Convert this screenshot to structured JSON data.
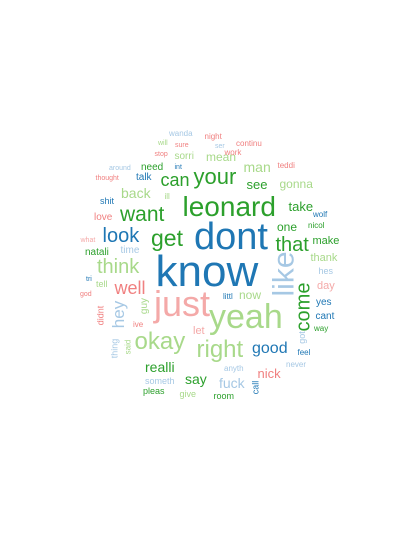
{
  "words": {
    "know": "know",
    "dont": "dont",
    "just": "just",
    "yeah": "yeah",
    "leonard": "leonard",
    "like": "like",
    "right": "right",
    "okay": "okay",
    "get": "get",
    "your": "your",
    "want": "want",
    "look": "look",
    "come": "come",
    "that": "that",
    "think": "think",
    "well": "well",
    "can": "can",
    "good": "good",
    "hey": "hey",
    "say": "say",
    "realli": "realli",
    "fuck": "fuck",
    "nick": "nick",
    "back": "back",
    "man": "man",
    "mean": "mean",
    "see": "see",
    "gonna": "gonna",
    "take": "take",
    "one": "one",
    "now": "now",
    "thank": "thank",
    "make": "make",
    "day": "day",
    "cant": "cant",
    "yes": "yes",
    "let": "let",
    "guy": "guy",
    "sorri": "sorri",
    "need": "need",
    "talk": "talk",
    "time": "time",
    "natali": "natali",
    "love": "love",
    "shit": "shit",
    "tell": "tell",
    "didnt": "didnt",
    "thing": "thing",
    "ive": "ive",
    "said": "said",
    "someth": "someth",
    "pleas": "pleas",
    "give": "give",
    "room": "room",
    "call": "call",
    "anyth": "anyth",
    "never": "never",
    "feel": "feel",
    "way": "way",
    "nicol": "nicol",
    "wolf": "wolf",
    "hes": "hes",
    "got": "got",
    "littl": "littl",
    "ill": "ill",
    "wanda": "wanda",
    "night": "night",
    "sure": "sure",
    "will": "will",
    "stop": "stop",
    "int": "int",
    "ser": "ser",
    "continu": "continu",
    "work": "work",
    "teddi": "teddi",
    "around": "around",
    "thought": "thought",
    "what": "what",
    "god": "god",
    "tri": "tri"
  }
}
